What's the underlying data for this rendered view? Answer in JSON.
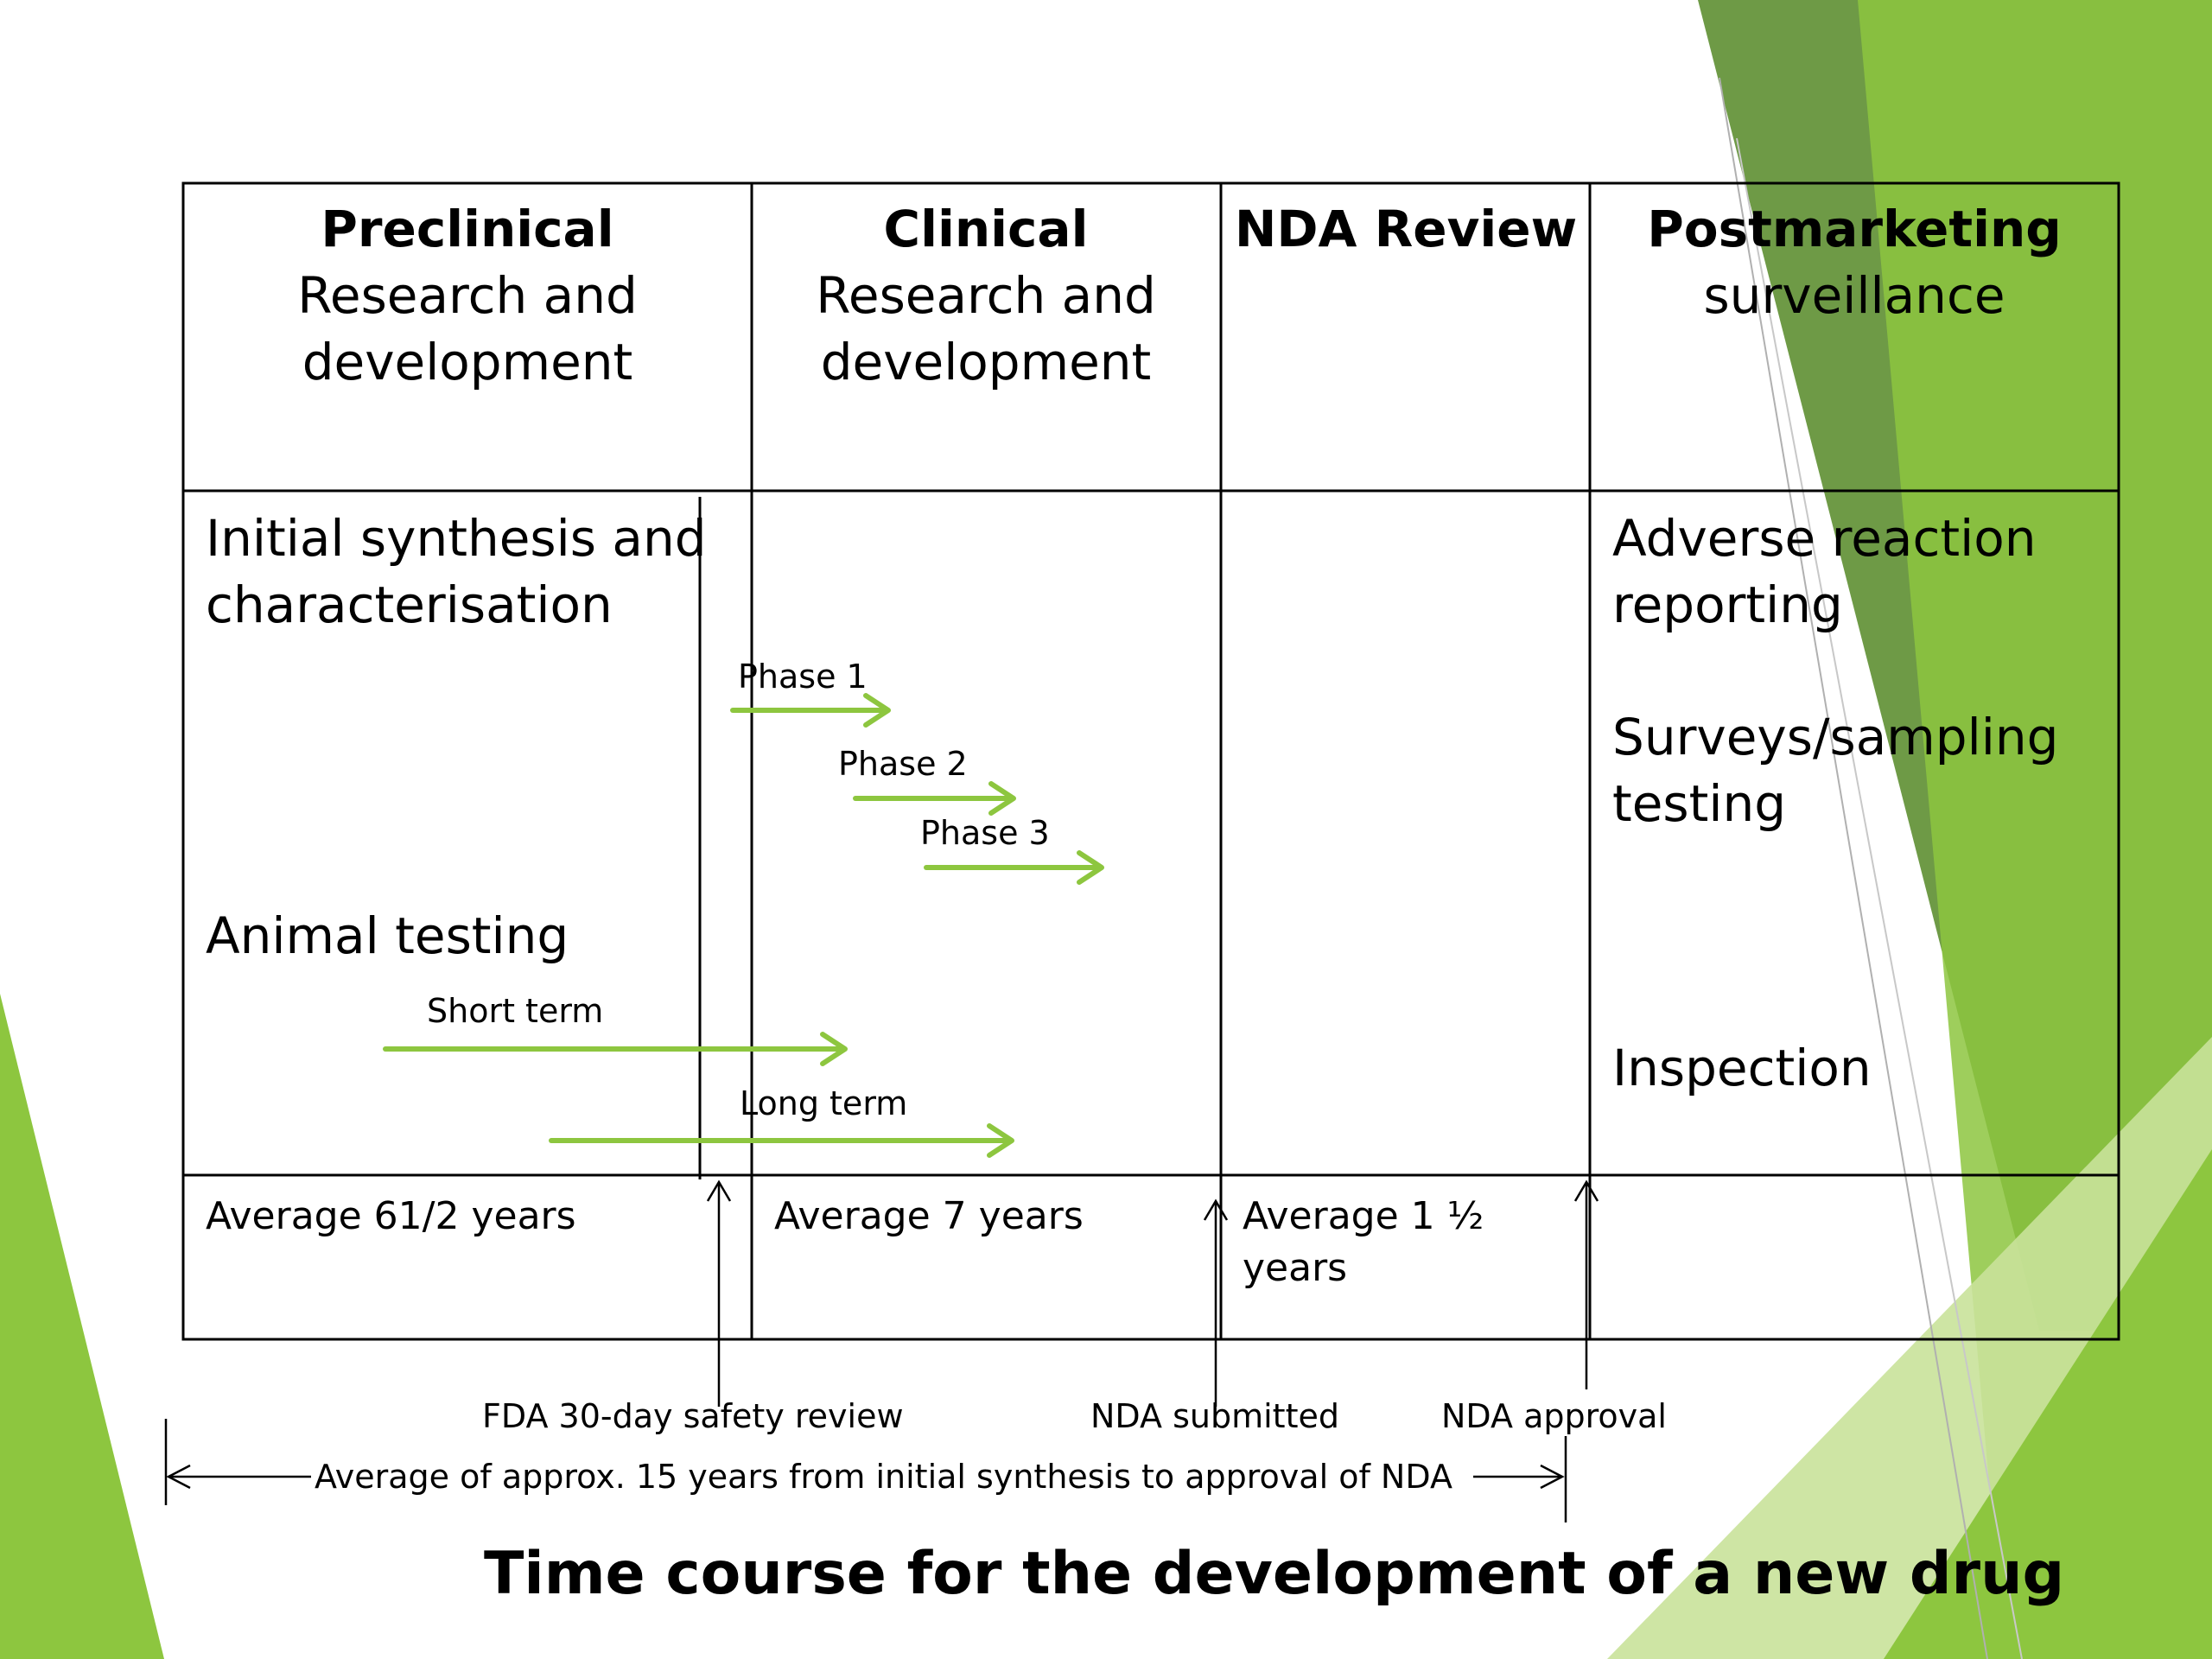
{
  "colors": {
    "accent_green": "#8DC63F",
    "dark_green": "#6E9A46",
    "light_green": "#C9E29A",
    "line": "#000000"
  },
  "headers": [
    {
      "bold": "Preclinical",
      "line2": "Research and",
      "line3": "development"
    },
    {
      "bold": "Clinical",
      "line2": "Research and",
      "line3": "development"
    },
    {
      "bold": "NDA Review",
      "line2": "",
      "line3": ""
    },
    {
      "bold": "Postmarketing",
      "line2": "surveillance",
      "line3": ""
    }
  ],
  "preclinical": {
    "synthesis_line1": "Initial synthesis and",
    "synthesis_line2": "characterisation",
    "animal_testing": "Animal testing",
    "short_term": "Short term",
    "long_term": "Long term"
  },
  "clinical": {
    "phases": [
      "Phase 1",
      "Phase 2",
      "Phase 3"
    ]
  },
  "postmarketing": {
    "item1_line1": "Adverse reaction",
    "item1_line2": "reporting",
    "item2_line1": "Surveys/sampling",
    "item2_line2": "testing",
    "item3": "Inspection"
  },
  "durations": {
    "preclinical": "Average 61/2 years",
    "clinical": "Average 7 years",
    "nda_line1": "Average 1 ½",
    "nda_line2": "years"
  },
  "milestones": {
    "fda_review": "FDA 30-day safety review",
    "nda_submitted": "NDA submitted",
    "nda_approval": "NDA approval"
  },
  "span_label": "Average of approx. 15 years from initial synthesis to approval of NDA",
  "title": "Time course for the development of a new drug"
}
